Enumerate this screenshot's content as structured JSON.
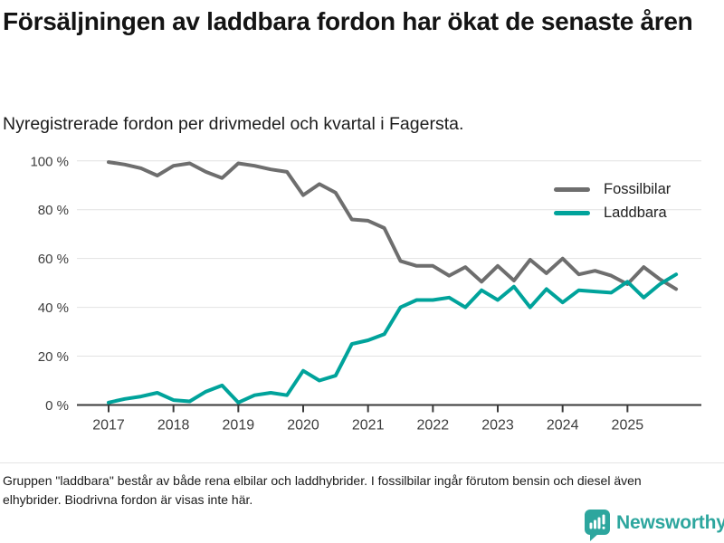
{
  "header": {
    "title": "Försäljningen av laddbara fordon har ökat de senaste åren",
    "subtitle": "Nyregistrerade fordon per drivmedel och kvartal i Fagersta."
  },
  "chart_data": {
    "type": "line",
    "title": "Försäljningen av laddbara fordon har ökat de senaste åren",
    "subtitle": "Nyregistrerade fordon per drivmedel och kvartal i Fagersta.",
    "x_labels": [
      "2017",
      "2018",
      "2019",
      "2020",
      "2021",
      "2022",
      "2023",
      "2024",
      "2025"
    ],
    "quarters": [
      "2017 Q1",
      "2017 Q2",
      "2017 Q3",
      "2017 Q4",
      "2018 Q1",
      "2018 Q2",
      "2018 Q3",
      "2018 Q4",
      "2019 Q1",
      "2019 Q2",
      "2019 Q3",
      "2019 Q4",
      "2020 Q1",
      "2020 Q2",
      "2020 Q3",
      "2020 Q4",
      "2021 Q1",
      "2021 Q2",
      "2021 Q3",
      "2021 Q4",
      "2022 Q1",
      "2022 Q2",
      "2022 Q3",
      "2022 Q4",
      "2023 Q1",
      "2023 Q2",
      "2023 Q3",
      "2023 Q4",
      "2024 Q1",
      "2024 Q2",
      "2024 Q3",
      "2024 Q4",
      "2025 Q1",
      "2025 Q2",
      "2025 Q3",
      "2025 Q4"
    ],
    "series": [
      {
        "name": "Fossilbilar",
        "color": "#6e6e6e",
        "values": [
          99.5,
          98.5,
          97,
          94,
          98,
          99,
          95.5,
          93,
          99,
          98,
          96.5,
          95.5,
          86,
          90.5,
          87,
          76,
          75.5,
          72.5,
          59,
          57,
          57,
          53,
          56.5,
          50.5,
          57,
          51,
          59.5,
          54,
          60,
          53.5,
          55,
          53,
          49.5,
          56.5,
          51.5,
          47.5
        ]
      },
      {
        "name": "Laddbara",
        "color": "#00a39b",
        "values": [
          1,
          2.5,
          3.5,
          5,
          2,
          1.5,
          5.5,
          8,
          1,
          4,
          5,
          4,
          14,
          10,
          12,
          25,
          26.5,
          29,
          40,
          43,
          43,
          44,
          40,
          47,
          43,
          48.5,
          40,
          47.5,
          42,
          47,
          46.5,
          46,
          50.5,
          44,
          49.5,
          53.5
        ]
      }
    ],
    "ylim": [
      0,
      100
    ],
    "yticks": [
      0,
      20,
      40,
      60,
      80,
      100
    ],
    "ytick_suffix": " %",
    "grid": "horizontal",
    "legend_position": "top-right"
  },
  "footer": {
    "note": "Gruppen \"laddbara\" består av både rena elbilar och laddhybrider. I fossilbilar ingår förutom bensin och diesel även elhybrider. Biodrivna fordon är visas inte här.",
    "brand": "Newsworthy"
  }
}
